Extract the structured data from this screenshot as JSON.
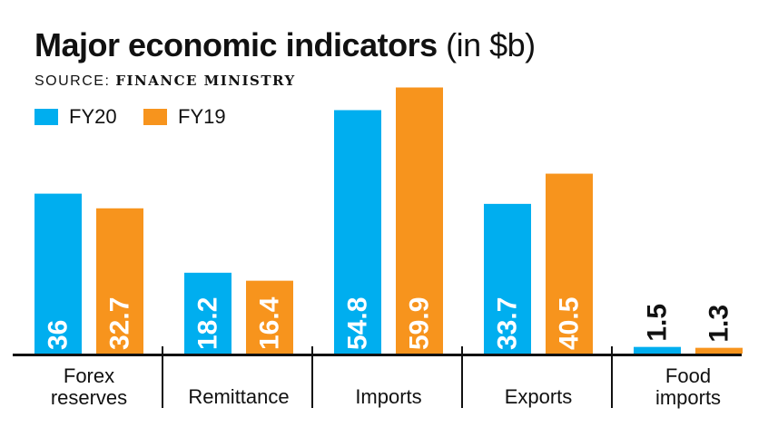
{
  "header": {
    "title": "Major economic indicators",
    "unit": "(in $b)",
    "source_prefix": "SOURCE:",
    "source_name": "FINANCE MINISTRY"
  },
  "colors": {
    "FY20": "#00aeef",
    "FY19": "#f7941d"
  },
  "chart_data": {
    "type": "bar",
    "title": "Major economic indicators (in $b)",
    "categories": [
      "Forex reserves",
      "Remittance",
      "Imports",
      "Exports",
      "Food imports"
    ],
    "category_lines": [
      [
        "Forex",
        "reserves"
      ],
      [
        "Remittance"
      ],
      [
        "Imports"
      ],
      [
        "Exports"
      ],
      [
        "Food",
        "imports"
      ]
    ],
    "series": [
      {
        "name": "FY20",
        "values": [
          36,
          18.2,
          54.8,
          33.7,
          1.5
        ]
      },
      {
        "name": "FY19",
        "values": [
          32.7,
          16.4,
          59.9,
          40.5,
          1.3
        ]
      }
    ],
    "value_labels": [
      [
        "36",
        "18.2",
        "54.8",
        "33.7",
        "1.5"
      ],
      [
        "32.7",
        "16.4",
        "59.9",
        "40.5",
        "1.3"
      ]
    ],
    "xlabel": "",
    "ylabel": "",
    "ylim": [
      0,
      60
    ],
    "grid": false,
    "legend": "top-left"
  }
}
